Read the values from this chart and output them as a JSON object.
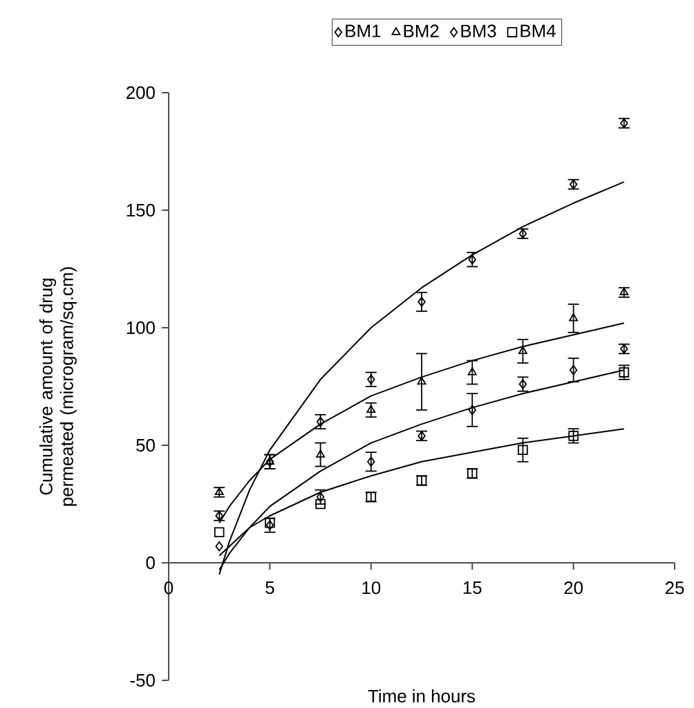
{
  "chart_data": {
    "type": "scatter",
    "xlabel": "Time in hours",
    "ylabel": "Cumulative amount of drug permeated (microgram/sq.cm)",
    "xlim": [
      0,
      25
    ],
    "ylim": [
      -50,
      200
    ],
    "xticks": [
      0,
      5,
      10,
      15,
      20,
      25
    ],
    "yticks": [
      -50,
      0,
      50,
      100,
      150,
      200
    ],
    "legend": "top",
    "series": [
      {
        "name": "BM1",
        "color": "#000000",
        "marker": "diamond",
        "x": [
          2.5,
          5,
          7.5,
          10,
          12.5,
          15,
          17.5,
          20,
          22.5
        ],
        "values": [
          20,
          43,
          60,
          78,
          111,
          129,
          140,
          161,
          187
        ],
        "errors": [
          2,
          3,
          3,
          3,
          4,
          3,
          2,
          2,
          2
        ]
      },
      {
        "name": "BM2",
        "color": "#000000",
        "marker": "triangle",
        "x": [
          2.5,
          5,
          7.5,
          10,
          12.5,
          15,
          17.5,
          20,
          22.5
        ],
        "values": [
          30,
          43,
          46,
          65,
          77,
          81,
          90,
          104,
          115
        ],
        "errors": [
          2,
          3,
          5,
          3,
          12,
          5,
          5,
          6,
          2
        ]
      },
      {
        "name": "BM3",
        "color": "#000000",
        "marker": "diamond",
        "x": [
          2.5,
          5,
          7.5,
          10,
          12.5,
          15,
          17.5,
          20,
          22.5
        ],
        "values": [
          7,
          16,
          28,
          43,
          54,
          65,
          76,
          82,
          91
        ],
        "errors": [
          null,
          3,
          3,
          4,
          2,
          7,
          3,
          5,
          2
        ]
      },
      {
        "name": "BM4",
        "color": "#000000",
        "marker": "square",
        "x": [
          2.5,
          5,
          7.5,
          10,
          12.5,
          15,
          17.5,
          20,
          22.5
        ],
        "values": [
          13,
          17,
          25,
          28,
          35,
          38,
          48,
          54,
          81
        ],
        "errors": [
          null,
          null,
          null,
          2,
          2,
          2,
          5,
          3,
          3
        ]
      },
      {
        "type": "line",
        "color": "#000000",
        "marker": "none",
        "x": [
          2.5,
          3,
          4,
          5,
          7.5,
          10,
          12.5,
          15,
          17.5,
          20,
          22.5
        ],
        "values": [
          -5,
          9,
          31,
          48,
          78,
          100,
          117,
          131,
          143,
          153,
          162
        ]
      },
      {
        "type": "line",
        "color": "#000000",
        "marker": "none",
        "x": [
          2.5,
          3,
          4,
          5,
          7.5,
          10,
          12.5,
          15,
          17.5,
          20,
          22.5
        ],
        "values": [
          17,
          24,
          35,
          44,
          59,
          71,
          79,
          86,
          92,
          97,
          102
        ]
      },
      {
        "type": "line",
        "color": "#000000",
        "marker": "none",
        "x": [
          2.5,
          3,
          4,
          5,
          7.5,
          10,
          12.5,
          15,
          17.5,
          20,
          22.5
        ],
        "values": [
          -3,
          4,
          15,
          24,
          39,
          51,
          59,
          66,
          72,
          77,
          82
        ]
      },
      {
        "type": "line",
        "color": "#000000",
        "marker": "none",
        "x": [
          2.5,
          3,
          4,
          5,
          7.5,
          10,
          12.5,
          15,
          17.5,
          20,
          22.5
        ],
        "values": [
          3,
          7,
          15,
          20,
          30,
          37,
          43,
          47,
          51,
          54,
          57
        ]
      }
    ]
  }
}
